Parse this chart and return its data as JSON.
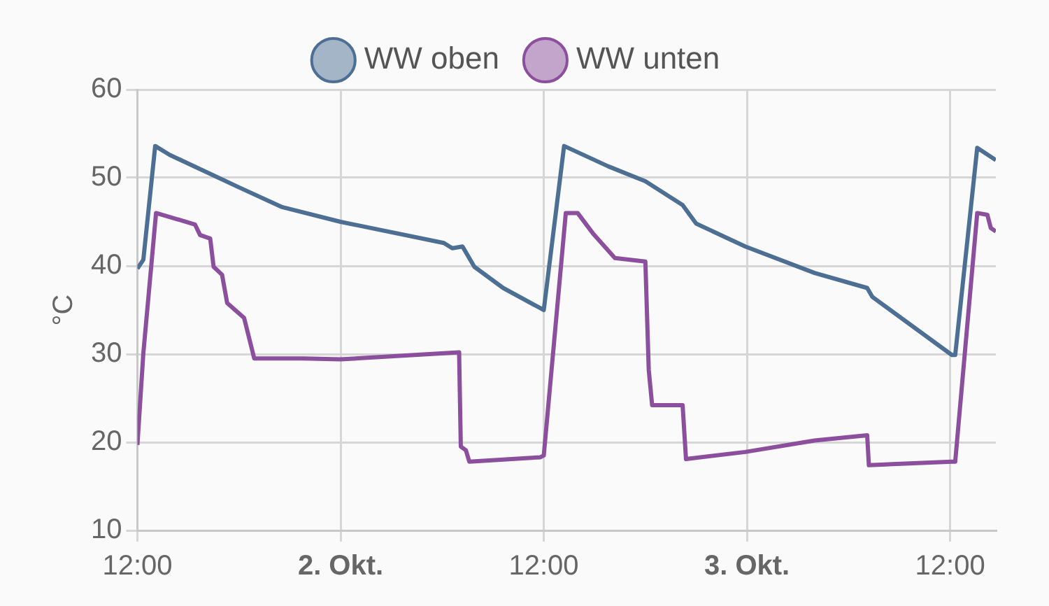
{
  "chart_data": {
    "type": "line",
    "ylabel": "°C",
    "legend": "top",
    "grid": true,
    "marker": "none",
    "line_style": "solid",
    "xlim": [
      "--10-01T12:00",
      "--10-03T14:42"
    ],
    "xticks": [
      {
        "value": "--10-01T12:00",
        "label": "12:00"
      },
      {
        "value": "--10-02",
        "label": "2. Okt."
      },
      {
        "value": "--10-02T12:00",
        "label": "12:00"
      },
      {
        "value": "--10-03",
        "label": "3. Okt."
      },
      {
        "value": "--10-03T12:00",
        "label": "12:00"
      }
    ],
    "ylim": [
      10,
      60
    ],
    "yticks": [
      10,
      20,
      30,
      40,
      50,
      60
    ],
    "series": [
      {
        "name": "WW oben",
        "color": "#4e6f94",
        "x": [
          "--10-01T12:00",
          "--10-01T12:21",
          "--10-01T13:03",
          "--10-01T13:54",
          "--10-01T17:54",
          "--10-01T20:30",
          "--10-02T00:00",
          "--10-02T06:06",
          "--10-02T06:36",
          "--10-02T07:12",
          "--10-02T07:54",
          "--10-02T09:36",
          "--10-02T11:48",
          "--10-02T12:00",
          "--10-02T13:12",
          "--10-02T15:48",
          "--10-02T18:00",
          "--10-02T20:12",
          "--10-02T21:00",
          "--10-02T23:54",
          "--10-03T04:00",
          "--10-03T07:06",
          "--10-03T07:24",
          "--10-03T12:06",
          "--10-03T12:18",
          "--10-03T13:36",
          "--10-03T14:42"
        ],
        "values": [
          39.7,
          40.7,
          53.6,
          52.6,
          49,
          46.7,
          45,
          42.6,
          42,
          42.2,
          39.9,
          37.5,
          35.2,
          35,
          53.6,
          51.3,
          49.6,
          46.9,
          44.8,
          42.2,
          39.2,
          37.5,
          36.5,
          29.9,
          29.9,
          53.4,
          52
        ]
      },
      {
        "name": "WW unten",
        "color": "#8b4f9d",
        "x": [
          "--10-01T12:00",
          "--10-01T12:21",
          "--10-01T13:06",
          "--10-01T15:24",
          "--10-01T15:42",
          "--10-01T16:18",
          "--10-01T16:30",
          "--10-01T17:00",
          "--10-01T17:18",
          "--10-01T18:18",
          "--10-01T18:54",
          "--10-01T19:12",
          "--10-01T21:48",
          "--10-02T00:00",
          "--10-02T07:00",
          "--10-02T07:06",
          "--10-02T07:24",
          "--10-02T07:36",
          "--10-02T11:48",
          "--10-02T12:00",
          "--10-02T13:18",
          "--10-02T14:00",
          "--10-02T14:54",
          "--10-02T16:12",
          "--10-02T17:06",
          "--10-02T18:00",
          "--10-02T18:12",
          "--10-02T18:24",
          "--10-02T20:12",
          "--10-02T20:24",
          "--10-02T23:54",
          "--10-03T04:00",
          "--10-03T07:06",
          "--10-03T07:12",
          "--10-03T12:06",
          "--10-03T12:18",
          "--10-03T13:36",
          "--10-03T14:12",
          "--10-03T14:24",
          "--10-03T14:42"
        ],
        "values": [
          19.7,
          30.1,
          46,
          44.7,
          43.5,
          43.1,
          39.9,
          39,
          35.8,
          34.1,
          29.5,
          29.5,
          29.5,
          29.4,
          30.2,
          19.5,
          19.1,
          17.8,
          18.3,
          18.5,
          46,
          46,
          43.7,
          40.9,
          40.7,
          40.5,
          28.2,
          24.2,
          24.2,
          18.1,
          18.9,
          20.2,
          20.8,
          17.4,
          17.8,
          17.8,
          46,
          45.8,
          44.3,
          43.9
        ]
      }
    ]
  }
}
